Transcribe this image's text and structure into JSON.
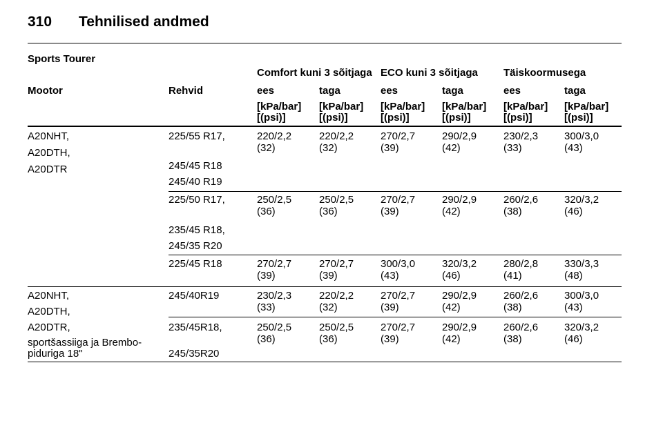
{
  "header": {
    "page_number": "310",
    "title": "Tehnilised andmed"
  },
  "section_title": "Sports Tourer",
  "table": {
    "group_headers": [
      "Comfort kuni 3 sõitjaga",
      "ECO kuni 3 sõitjaga",
      "Täiskoormusega"
    ],
    "column_headers": [
      "Mootor",
      "Rehvid",
      "ees",
      "taga",
      "ees",
      "taga",
      "ees",
      "taga"
    ],
    "units": [
      [
        "[kPa/bar]",
        "[(psi)]"
      ],
      [
        "[kPa/bar]",
        "[(psi)]"
      ],
      [
        "[kPa/bar]",
        "[(psi)]"
      ],
      [
        "[kPa/bar]",
        "[(psi)]"
      ],
      [
        "[kPa/bar]",
        "[(psi)]"
      ],
      [
        "[kPa/bar]",
        "[(psi)]"
      ]
    ],
    "groups": [
      {
        "engine": [
          "A20NHT,",
          "A20DTH,",
          "A20DTR"
        ],
        "rows": [
          {
            "tires": [
              "225/55 R17,",
              "245/45 R18",
              "245/40 R19"
            ],
            "values": [
              [
                "220/2,2",
                "(32)"
              ],
              [
                "220/2,2",
                "(32)"
              ],
              [
                "270/2,7",
                "(39)"
              ],
              [
                "290/2,9",
                "(42)"
              ],
              [
                "230/2,3",
                "(33)"
              ],
              [
                "300/3,0",
                "(43)"
              ]
            ]
          },
          {
            "tires": [
              "225/50 R17,",
              "235/45 R18,",
              "245/35 R20"
            ],
            "values": [
              [
                "250/2,5",
                "(36)"
              ],
              [
                "250/2,5",
                "(36)"
              ],
              [
                "270/2,7",
                "(39)"
              ],
              [
                "290/2,9",
                "(42)"
              ],
              [
                "260/2,6",
                "(38)"
              ],
              [
                "320/3,2",
                "(46)"
              ]
            ]
          },
          {
            "tires": [
              "225/45 R18"
            ],
            "values": [
              [
                "270/2,7",
                "(39)"
              ],
              [
                "270/2,7",
                "(39)"
              ],
              [
                "300/3,0",
                "(43)"
              ],
              [
                "320/3,2",
                "(46)"
              ],
              [
                "280/2,8",
                "(41)"
              ],
              [
                "330/3,3",
                "(48)"
              ]
            ]
          }
        ]
      },
      {
        "engine": [
          "A20NHT,",
          "A20DTH,",
          "A20DTR,",
          "sportšassiiga ja Brembo-",
          "piduriga 18\""
        ],
        "rows": [
          {
            "tires": [
              "245/40R19"
            ],
            "values": [
              [
                "230/2,3",
                "(33)"
              ],
              [
                "220/2,2",
                "(32)"
              ],
              [
                "270/2,7",
                "(39)"
              ],
              [
                "290/2,9",
                "(42)"
              ],
              [
                "260/2,6",
                "(38)"
              ],
              [
                "300/3,0",
                "(43)"
              ]
            ]
          },
          {
            "tires": [
              "235/45R18,",
              "245/35R20"
            ],
            "values": [
              [
                "250/2,5",
                "(36)"
              ],
              [
                "250/2,5",
                "(36)"
              ],
              [
                "270/2,7",
                "(39)"
              ],
              [
                "290/2,9",
                "(42)"
              ],
              [
                "260/2,6",
                "(38)"
              ],
              [
                "320/3,2",
                "(46)"
              ]
            ]
          }
        ]
      }
    ]
  }
}
